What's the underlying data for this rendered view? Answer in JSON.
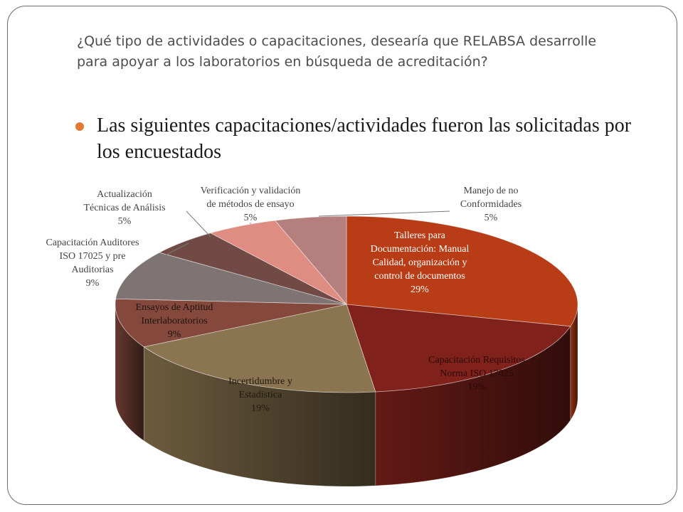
{
  "slide": {
    "title": "¿Qué tipo de actividades o capacitaciones, desearía que RELABSA desarrolle para apoyar a los laboratorios en búsqueda de acreditación?",
    "bullet": "Las siguientes capacitaciones/actividades fueron las solicitadas por los encuestados",
    "accent_color": "#e07a35"
  },
  "chart_data": {
    "type": "pie",
    "title": "",
    "three_d": true,
    "slices": [
      {
        "label_lines": [
          "Talleres para",
          "Documentación: Manual",
          "Calidad, organización y",
          "control de documentos"
        ],
        "value": 29,
        "value_label": "29%",
        "color": "#b83c16"
      },
      {
        "label_lines": [
          "Capacitación Requisitos",
          "Norma ISO 17025"
        ],
        "value": 19,
        "value_label": "19%",
        "color": "#80211b"
      },
      {
        "label_lines": [
          "Incertidumbre y",
          "Estadística"
        ],
        "value": 19,
        "value_label": "19%",
        "color": "#8a7550"
      },
      {
        "label_lines": [
          "Ensayos de Aptitud",
          "Interlaboratorios"
        ],
        "value": 9,
        "value_label": "9%",
        "color": "#84493c"
      },
      {
        "label_lines": [
          "Capacitación Auditores",
          "ISO 17025 y pre",
          "Auditorias"
        ],
        "value": 9,
        "value_label": "9%",
        "color": "#7e7473"
      },
      {
        "label_lines": [
          "Actualización",
          "Técnicas de Análisis"
        ],
        "value": 5,
        "value_label": "5%",
        "color": "#724a45"
      },
      {
        "label_lines": [
          "Verificación y validación",
          "de métodos de ensayo"
        ],
        "value": 5,
        "value_label": "5%",
        "color": "#df8c82"
      },
      {
        "label_lines": [
          "Manejo de no",
          "Conformidades"
        ],
        "value": 5,
        "value_label": "5%",
        "color": "#b47f7c"
      }
    ]
  }
}
